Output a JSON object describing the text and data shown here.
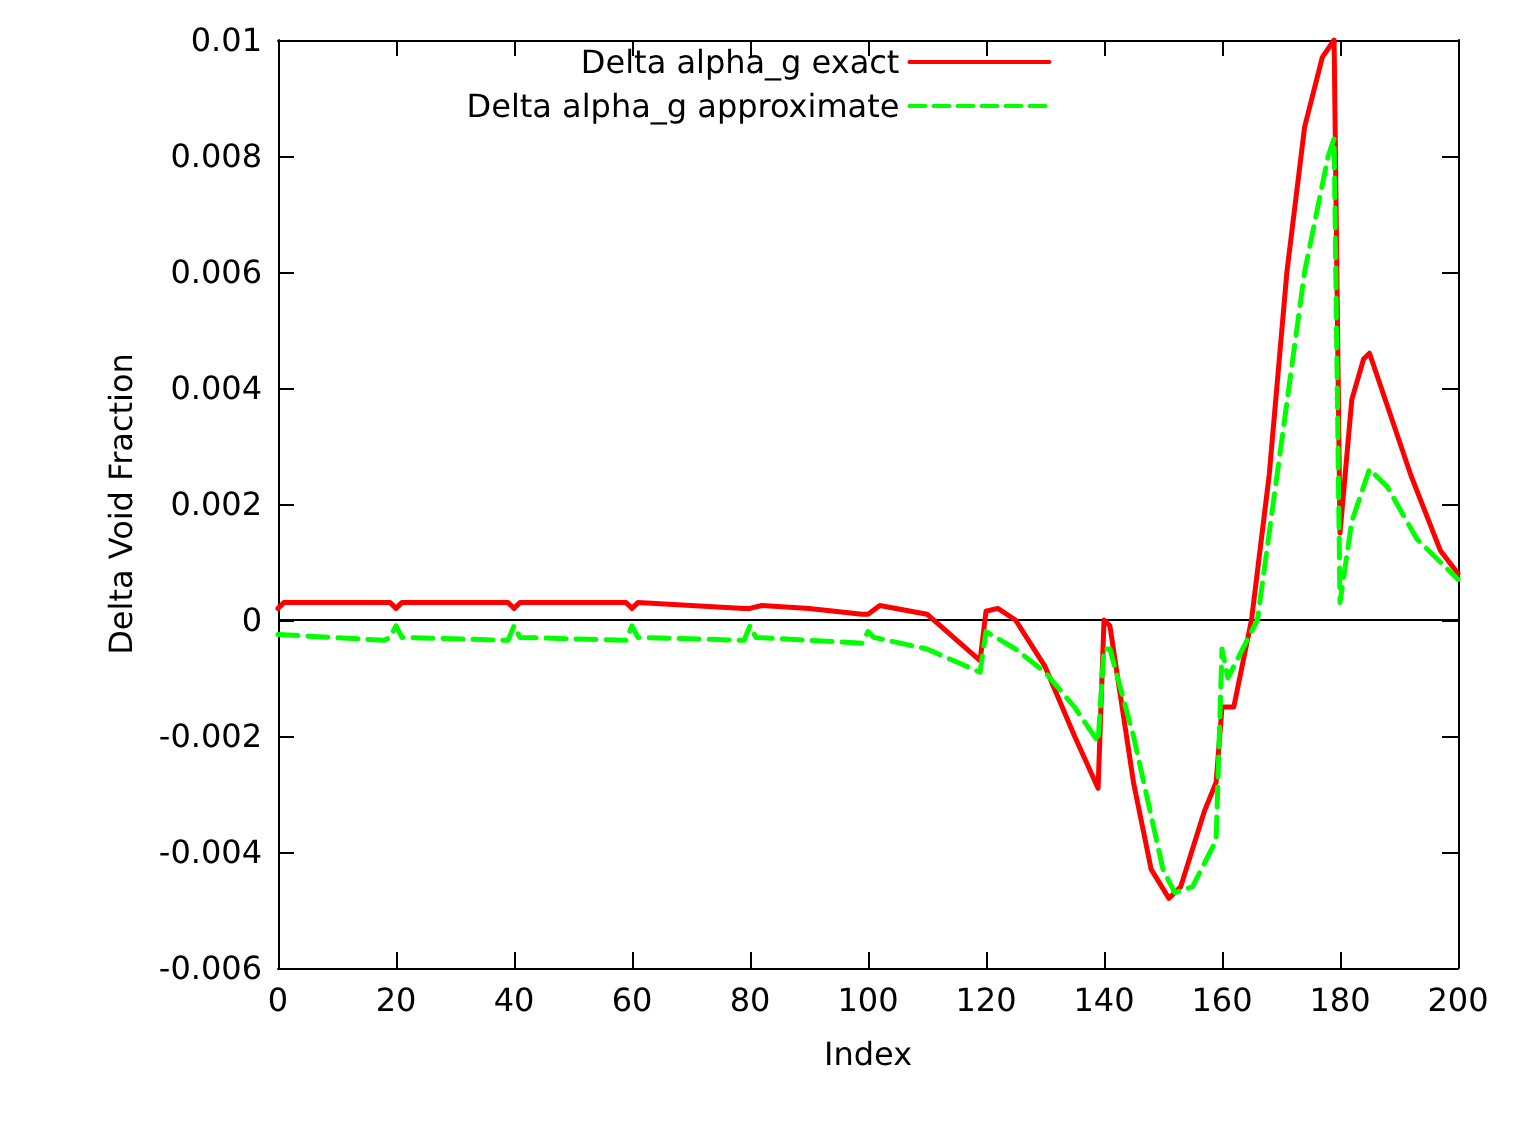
{
  "chart_data": {
    "type": "line",
    "xlabel": "Index",
    "ylabel": "Delta Void Fraction",
    "xlim": [
      0,
      200
    ],
    "xticks": [
      0,
      20,
      40,
      60,
      80,
      100,
      120,
      140,
      160,
      180,
      200
    ],
    "ylim": [
      -0.006,
      0.01
    ],
    "yticks": [
      -0.006,
      -0.004,
      -0.002,
      0,
      0.002,
      0.004,
      0.006,
      0.008,
      0.01
    ],
    "grid": false,
    "legend": "top",
    "marker": "none",
    "ref_lines": [
      {
        "axis": "y",
        "value": 0,
        "color": "#000000"
      }
    ],
    "series": [
      {
        "name": "Delta alpha_g exact",
        "color": "#ff0000",
        "line_style": "solid",
        "x": [
          0,
          1,
          19,
          20,
          21,
          39,
          40,
          41,
          59,
          60,
          61,
          79,
          80,
          82,
          90,
          99,
          100,
          102,
          110,
          119,
          120,
          122,
          125,
          130,
          135,
          139,
          140,
          141,
          145,
          148,
          151,
          153,
          157,
          159,
          160,
          161,
          162,
          165,
          168,
          171,
          174,
          177,
          179,
          180,
          182,
          184,
          185,
          187,
          192,
          197,
          200
        ],
        "values": [
          0.0002,
          0.0003,
          0.0003,
          0.0002,
          0.0003,
          0.0003,
          0.0002,
          0.0003,
          0.0003,
          0.0002,
          0.0003,
          0.0002,
          0.0002,
          0.00025,
          0.0002,
          0.0001,
          0.0001,
          0.00025,
          0.0001,
          -0.0007,
          0.00015,
          0.0002,
          0.0,
          -0.0008,
          -0.002,
          -0.0029,
          0.0,
          -0.0001,
          -0.0028,
          -0.0043,
          -0.0048,
          -0.0046,
          -0.0033,
          -0.0028,
          -0.0015,
          -0.0015,
          -0.0015,
          0,
          0.0025,
          0.006,
          0.0085,
          0.0097,
          0.01,
          0.0015,
          0.0038,
          0.0045,
          0.0046,
          0.004,
          0.0025,
          0.0012,
          0.0008
        ]
      },
      {
        "name": "Delta alpha_g approximate",
        "color": "#00ff00",
        "line_style": "dashed",
        "x": [
          0,
          18,
          19,
          20,
          21,
          39,
          40,
          41,
          59,
          60,
          61,
          79,
          80,
          81,
          99,
          100,
          101,
          110,
          119,
          120,
          125,
          130,
          135,
          139,
          140,
          141,
          145,
          150,
          152,
          155,
          158,
          159,
          160,
          161,
          162,
          166,
          170,
          174,
          178,
          179,
          180,
          182,
          185,
          188,
          193,
          200
        ],
        "values": [
          -0.00025,
          -0.00035,
          -0.0003,
          -0.0001,
          -0.0003,
          -0.00035,
          -0.0001,
          -0.0003,
          -0.00035,
          -0.0001,
          -0.0003,
          -0.00035,
          -0.0001,
          -0.0003,
          -0.0004,
          -0.0002,
          -0.0003,
          -0.0005,
          -0.0009,
          -0.0002,
          -0.0005,
          -0.0009,
          -0.0015,
          -0.0021,
          -0.0005,
          -0.0005,
          -0.002,
          -0.0043,
          -0.0047,
          -0.0046,
          -0.004,
          -0.0038,
          -0.0005,
          -0.001,
          -0.0008,
          0,
          0.003,
          0.006,
          0.008,
          0.0083,
          0.0003,
          0.0017,
          0.0026,
          0.0023,
          0.0014,
          0.0007
        ]
      }
    ]
  }
}
